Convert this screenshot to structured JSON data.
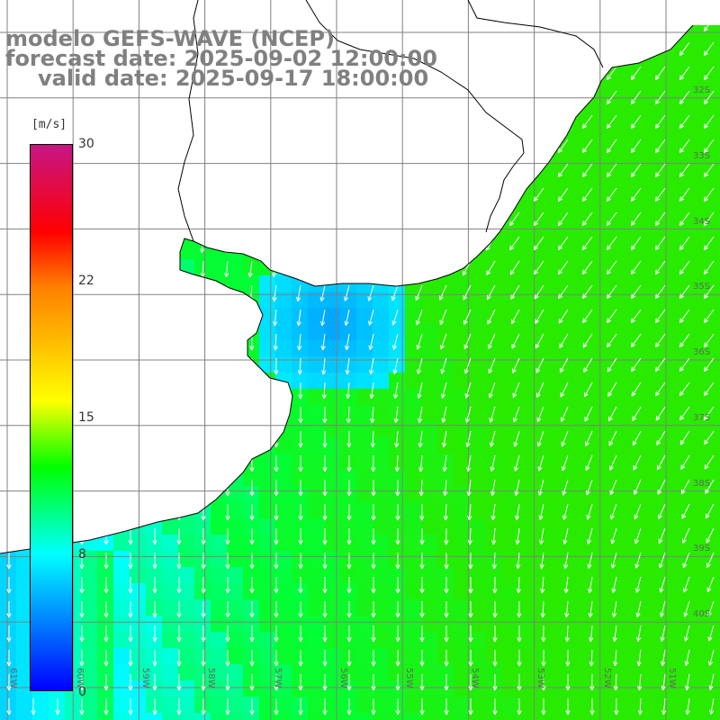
{
  "title": {
    "line1": "modelo GEFS-WAVE (NCEP)",
    "line2": "forecast date: 2025-09-02 12:00:00",
    "line3": "valid date: 2025-09-17 18:00:00"
  },
  "legend": {
    "unit": "[m/s]",
    "ticks": [
      "30",
      "22",
      "15",
      "8",
      "0"
    ],
    "colors": [
      "#c71585",
      "#ff0000",
      "#ff7f00",
      "#ffff00",
      "#00ff00",
      "#00ffff",
      "#0000ff"
    ]
  },
  "map": {
    "land_color": "#ffffff",
    "coast_color": "#000000",
    "grid_color": "#808080",
    "arrow_color": "#ffffff",
    "lon_labels": [
      "61W",
      "60W",
      "59W",
      "58W",
      "57W",
      "56W",
      "55W",
      "54W",
      "53W",
      "52W",
      "51W"
    ],
    "lat_labels": [
      "32S",
      "33S",
      "34S",
      "35S",
      "36S",
      "37S",
      "38S",
      "39S",
      "40S"
    ]
  }
}
